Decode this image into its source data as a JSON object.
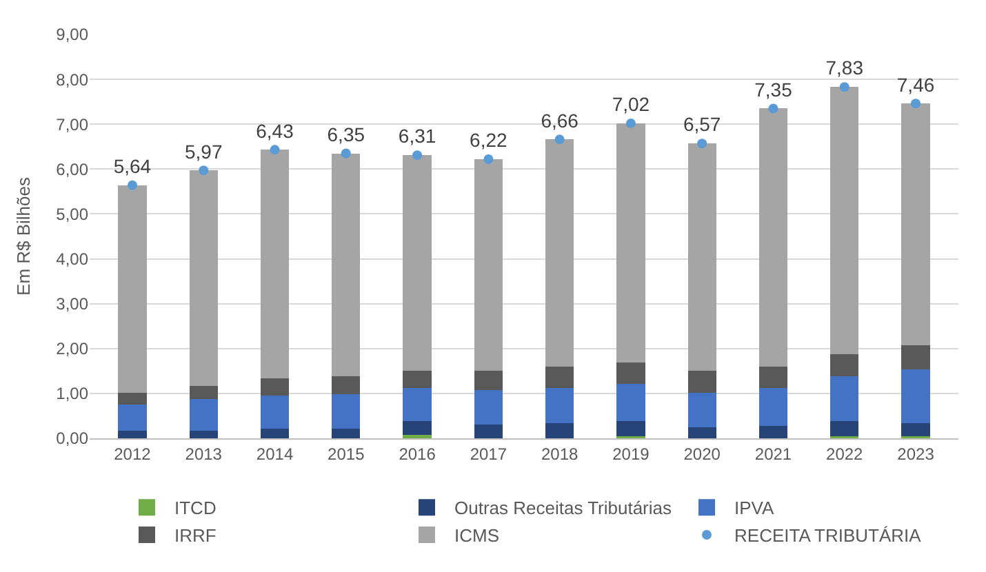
{
  "chart_data": {
    "type": "bar",
    "stacked": true,
    "ylabel": "Em R$ Bilhões",
    "categories": [
      "2012",
      "2013",
      "2014",
      "2015",
      "2016",
      "2017",
      "2018",
      "2019",
      "2020",
      "2021",
      "2022",
      "2023"
    ],
    "series": [
      {
        "name": "ITCD",
        "color": "#70ad47",
        "values": [
          0,
          0,
          0,
          0,
          0.08,
          0,
          0,
          0.04,
          0,
          0,
          0.04,
          0.04
        ]
      },
      {
        "name": "Outras Receitas Tributárias",
        "color": "#264478",
        "values": [
          0.17,
          0.17,
          0.21,
          0.21,
          0.31,
          0.31,
          0.34,
          0.35,
          0.24,
          0.27,
          0.35,
          0.3
        ]
      },
      {
        "name": "IPVA",
        "color": "#4472c4",
        "values": [
          0.59,
          0.71,
          0.74,
          0.77,
          0.73,
          0.76,
          0.78,
          0.82,
          0.78,
          0.85,
          0.99,
          1.2
        ]
      },
      {
        "name": "IRRF",
        "color": "#595959",
        "values": [
          0.26,
          0.29,
          0.38,
          0.4,
          0.39,
          0.43,
          0.47,
          0.48,
          0.49,
          0.47,
          0.49,
          0.53
        ]
      },
      {
        "name": "ICMS",
        "color": "#a5a5a5",
        "values": [
          4.62,
          4.8,
          5.1,
          4.97,
          4.8,
          4.72,
          5.07,
          5.33,
          5.06,
          5.76,
          5.96,
          5.39
        ]
      },
      {
        "name": "RECEITA TRIBUTÁRIA",
        "type": "scatter",
        "marker": "circle",
        "color": "#5b9bd5",
        "values": [
          5.64,
          5.97,
          6.43,
          6.35,
          6.31,
          6.22,
          6.66,
          7.02,
          6.57,
          7.35,
          7.83,
          7.46
        ],
        "value_labels": [
          "5,64",
          "5,97",
          "6,43",
          "6,35",
          "6,31",
          "6,22",
          "6,66",
          "7,02",
          "6,57",
          "7,35",
          "7,83",
          "7,46"
        ]
      }
    ],
    "ylim": [
      0,
      9
    ],
    "yticks": [
      {
        "value": 0,
        "label": "0,00"
      },
      {
        "value": 1,
        "label": "1,00"
      },
      {
        "value": 2,
        "label": "2,00"
      },
      {
        "value": 3,
        "label": "3,00"
      },
      {
        "value": 4,
        "label": "4,00"
      },
      {
        "value": 5,
        "label": "5,00"
      },
      {
        "value": 6,
        "label": "6,00"
      },
      {
        "value": 7,
        "label": "7,00"
      },
      {
        "value": 8,
        "label": "8,00"
      },
      {
        "value": 9,
        "label": "9,00"
      }
    ],
    "grid": "y",
    "legend": "bottom"
  }
}
